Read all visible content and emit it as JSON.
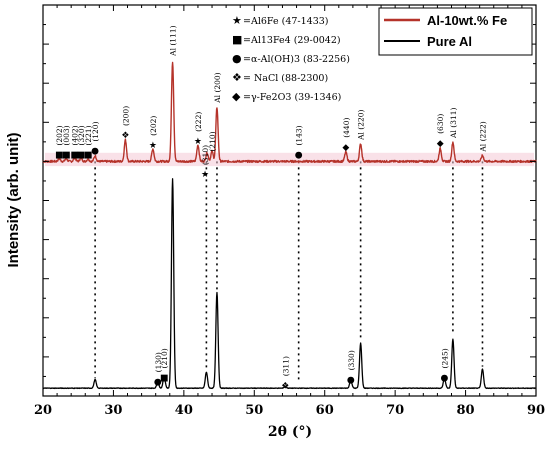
{
  "chart_data": {
    "type": "line",
    "xlabel": "2θ (°)",
    "ylabel": "Intensity (arb. unit)",
    "xlim": [
      20,
      90
    ],
    "ylim": [
      0,
      100
    ],
    "x_ticks": [
      "20",
      "30",
      "40",
      "50",
      "60",
      "70",
      "80",
      "90"
    ],
    "grid": false,
    "legend": {
      "position": "top-right",
      "entries": [
        "Al-10wt.% Fe",
        "Pure Al"
      ]
    },
    "series": [
      {
        "name": "Al-10wt.% Fe",
        "color": "#b5332a",
        "baseline": 60,
        "peaks": [
          {
            "x": 22.3,
            "h": 0.7
          },
          {
            "x": 23.3,
            "h": 0.7
          },
          {
            "x": 24.5,
            "h": 0.9
          },
          {
            "x": 25.4,
            "h": 0.9
          },
          {
            "x": 26.4,
            "h": 0.6
          },
          {
            "x": 27.4,
            "h": 1.4
          },
          {
            "x": 31.7,
            "h": 5.5
          },
          {
            "x": 35.6,
            "h": 3.2
          },
          {
            "x": 38.4,
            "h": 25.5
          },
          {
            "x": 42.0,
            "h": 4.2
          },
          {
            "x": 43.3,
            "h": 2.2
          },
          {
            "x": 44.0,
            "h": 2.6
          },
          {
            "x": 44.7,
            "h": 13.8
          },
          {
            "x": 63.0,
            "h": 2.4
          },
          {
            "x": 65.1,
            "h": 4.5
          },
          {
            "x": 76.4,
            "h": 3.3
          },
          {
            "x": 78.2,
            "h": 4.9
          },
          {
            "x": 82.4,
            "h": 1.5
          }
        ]
      },
      {
        "name": "Pure Al",
        "color": "#000000",
        "baseline": 2,
        "peaks": [
          {
            "x": 27.4,
            "h": 2.2
          },
          {
            "x": 36.3,
            "h": 1.5
          },
          {
            "x": 37.2,
            "h": 2.9
          },
          {
            "x": 38.4,
            "h": 53.5
          },
          {
            "x": 43.2,
            "h": 4.1
          },
          {
            "x": 44.7,
            "h": 24.5
          },
          {
            "x": 54.4,
            "h": 0.5
          },
          {
            "x": 63.7,
            "h": 2.1
          },
          {
            "x": 65.1,
            "h": 11.5
          },
          {
            "x": 77.0,
            "h": 2.5
          },
          {
            "x": 78.2,
            "h": 12.5
          },
          {
            "x": 82.4,
            "h": 4.9
          }
        ]
      }
    ],
    "dotted_lines": [
      {
        "x": 27.4,
        "y_top": 60,
        "y_bottom": 4.5
      },
      {
        "x": 43.2,
        "y_top": 60,
        "y_bottom": 6.5
      },
      {
        "x": 44.7,
        "y_top": 60,
        "y_bottom": 26.5
      },
      {
        "x": 56.3,
        "y_top": 60,
        "y_bottom": 3.5
      },
      {
        "x": 65.1,
        "y_top": 60,
        "y_bottom": 14.5
      },
      {
        "x": 78.2,
        "y_top": 60,
        "y_bottom": 15.5
      },
      {
        "x": 82.4,
        "y_top": 60,
        "y_bottom": 7.5
      }
    ],
    "phase_key": [
      {
        "symbol": "★",
        "text": "=Al6Fe (47-1433)"
      },
      {
        "symbol": "■",
        "text": "=Al13Fe4 (29-0042)"
      },
      {
        "symbol": "●",
        "text": "=α-Al(OH)3 (83-2256)"
      },
      {
        "symbol": "❖",
        "text": "= NaCl (88-2300)"
      },
      {
        "symbol": "◆",
        "text": "=γ-Fe2O3 (39-1346)"
      }
    ],
    "annotations_upper": [
      {
        "x": 22.3,
        "y": 62,
        "text": "(202)",
        "rot": -90,
        "marker": "■"
      },
      {
        "x": 23.3,
        "y": 62,
        "text": "(003)",
        "rot": -90,
        "marker": "■"
      },
      {
        "x": 24.5,
        "y": 62,
        "text": "(402)",
        "rot": -90,
        "marker": "■"
      },
      {
        "x": 25.4,
        "y": 62,
        "text": "(320)",
        "rot": -90,
        "marker": "■"
      },
      {
        "x": 26.4,
        "y": 62,
        "text": "(221)",
        "rot": -90,
        "marker": "■"
      },
      {
        "x": 27.4,
        "y": 63,
        "text": "(120)",
        "rot": -90,
        "marker": "●"
      },
      {
        "x": 31.7,
        "y": 67,
        "text": "(200)",
        "rot": -90,
        "marker": "❖"
      },
      {
        "x": 35.6,
        "y": 64.5,
        "text": "(202)",
        "rot": -90,
        "marker": "★"
      },
      {
        "x": 38.4,
        "y": 87,
        "text": "Al (111)",
        "rot": -90,
        "marker": ""
      },
      {
        "x": 42.0,
        "y": 65.5,
        "text": "(222)",
        "rot": -90,
        "marker": "★"
      },
      {
        "x": 44.0,
        "y": 62.5,
        "text": "(210)",
        "rot": -90,
        "marker": ""
      },
      {
        "x": 44.7,
        "y": 75,
        "text": "Al (200)",
        "rot": -90,
        "marker": ""
      },
      {
        "x": 56.3,
        "y": 62,
        "text": "(143)",
        "rot": -90,
        "marker": "●"
      },
      {
        "x": 63.0,
        "y": 64,
        "text": "(440)",
        "rot": -90,
        "marker": "◆"
      },
      {
        "x": 65.1,
        "y": 65.5,
        "text": "Al (220)",
        "rot": -90,
        "marker": ""
      },
      {
        "x": 76.4,
        "y": 65,
        "text": "(630)",
        "rot": -90,
        "marker": "◆"
      },
      {
        "x": 78.2,
        "y": 66,
        "text": "Al (311)",
        "rot": -90,
        "marker": ""
      },
      {
        "x": 82.4,
        "y": 62.5,
        "text": "Al (222)",
        "rot": -90,
        "marker": ""
      }
    ],
    "annotations_lower": [
      {
        "x": 36.3,
        "y": 4,
        "text": "(130)",
        "rot": -90,
        "marker": "●"
      },
      {
        "x": 37.2,
        "y": 5,
        "text": "(210)",
        "rot": -90,
        "marker": "■"
      },
      {
        "x": 43.0,
        "y": 57,
        "text": "(310)",
        "rot": -90,
        "marker": "★"
      },
      {
        "x": 54.4,
        "y": 3,
        "text": "(311)",
        "rot": -90,
        "marker": "❖"
      },
      {
        "x": 63.7,
        "y": 4.5,
        "text": "(330)",
        "rot": -90,
        "marker": "●"
      },
      {
        "x": 77.0,
        "y": 5,
        "text": "(245)",
        "rot": -90,
        "marker": "●"
      }
    ]
  }
}
